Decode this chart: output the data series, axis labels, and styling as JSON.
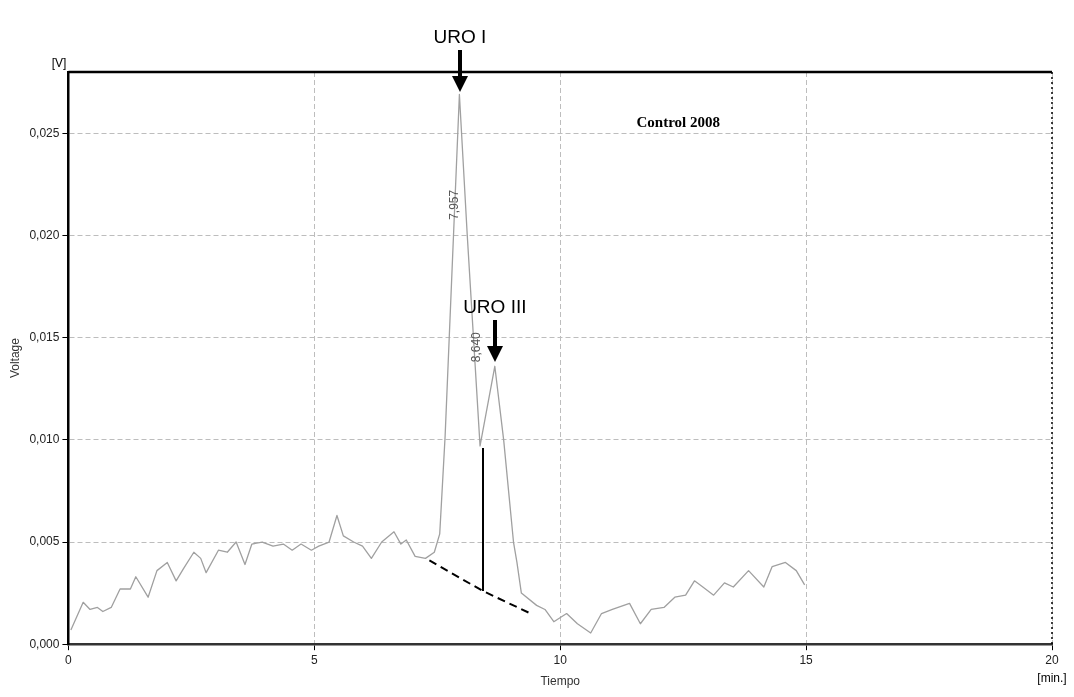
{
  "chart_data": {
    "type": "line",
    "xlabel": "Tiempo",
    "ylabel": "Voltage",
    "annotations": [
      "Control 2008",
      "[V]",
      "[min.]",
      {
        "text": "URO I",
        "x": 7.96,
        "y": 0.0269
      },
      {
        "text": "URO III",
        "x": 8.67,
        "y": 0.0137
      },
      {
        "text": "7,957",
        "x": 7.957,
        "y": 0.0215
      },
      {
        "text": "8,640",
        "x": 8.64,
        "y": 0.0136
      }
    ],
    "xlim": [
      0,
      20
    ],
    "xticks": [
      0,
      5,
      10,
      15,
      20
    ],
    "ylim": [
      0,
      0.028
    ],
    "yticks": [
      {
        "value": 0,
        "label": "0,000"
      },
      {
        "value": 0.005,
        "label": "0,005"
      },
      {
        "value": 0.01,
        "label": "0,010"
      },
      {
        "value": 0.015,
        "label": "0,015"
      },
      {
        "value": 0.02,
        "label": "0,020"
      },
      {
        "value": 0.025,
        "label": "0,025"
      }
    ],
    "grid": true,
    "legend": false,
    "marker": "none",
    "series": [
      {
        "color": "#a0a0a0",
        "x": [
          0.05,
          0.3,
          0.44,
          0.59,
          0.7,
          0.87,
          1.05,
          1.26,
          1.37,
          1.62,
          1.8,
          2.01,
          2.19,
          2.34,
          2.55,
          2.69,
          2.8,
          3.05,
          3.23,
          3.41,
          3.59,
          3.73,
          3.94,
          4.16,
          4.37,
          4.55,
          4.73,
          4.94,
          5.09,
          5.3,
          5.46,
          5.59,
          5.8,
          5.98,
          6.16,
          6.37,
          6.62,
          6.76,
          6.87,
          7.05,
          7.26,
          7.44,
          7.55,
          7.66,
          7.83,
          7.95,
          8.11,
          8.37,
          8.67,
          8.85,
          9.05,
          9.12,
          9.21,
          9.52,
          9.69,
          9.87,
          10.13,
          10.35,
          10.62,
          10.84,
          11.06,
          11.41,
          11.63,
          11.85,
          12.11,
          12.33,
          12.55,
          12.73,
          12.9,
          13.12,
          13.34,
          13.52,
          13.83,
          14.14,
          14.31,
          14.58,
          14.8,
          14.97
        ],
        "values": [
          0.0007,
          0.00205,
          0.0017,
          0.0018,
          0.0016,
          0.0018,
          0.0027,
          0.0027,
          0.0033,
          0.0023,
          0.0036,
          0.004,
          0.0031,
          0.0037,
          0.0045,
          0.0042,
          0.0035,
          0.0046,
          0.0045,
          0.005,
          0.0039,
          0.0049,
          0.005,
          0.0048,
          0.0049,
          0.0046,
          0.0049,
          0.0046,
          0.0048,
          0.005,
          0.0063,
          0.0053,
          0.005,
          0.0048,
          0.0042,
          0.005,
          0.0055,
          0.0049,
          0.0051,
          0.0043,
          0.0042,
          0.0045,
          0.0054,
          0.0102,
          0.02,
          0.0269,
          0.02,
          0.0097,
          0.0136,
          0.01,
          0.005,
          0.004,
          0.0025,
          0.0019,
          0.0017,
          0.0011,
          0.0015,
          0.001,
          0.00055,
          0.0015,
          0.0017,
          0.002,
          0.001,
          0.0017,
          0.0018,
          0.0023,
          0.0024,
          0.0031,
          0.0028,
          0.0024,
          0.003,
          0.0028,
          0.0036,
          0.0028,
          0.0038,
          0.004,
          0.0036,
          0.0029
        ]
      },
      {
        "color": "#000000",
        "line_style": "dashed",
        "x": [
          7.34,
          8.43,
          9.4
        ],
        "values": [
          0.0041,
          0.0026,
          0.0015
        ]
      },
      {
        "color": "#000000",
        "x": [
          8.43,
          8.43
        ],
        "values": [
          0.0026,
          0.0096
        ]
      }
    ]
  }
}
